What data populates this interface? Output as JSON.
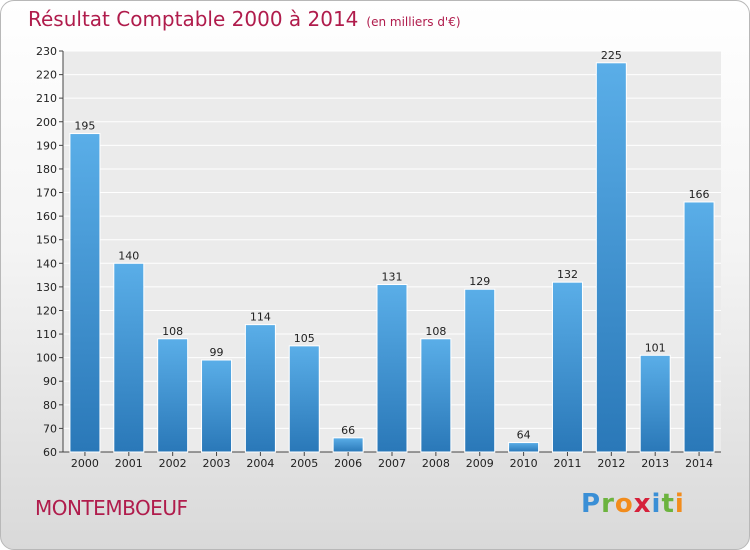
{
  "header": {
    "title": "Résultat Comptable 2000 à 2014",
    "subtitle": "(en milliers d'€)"
  },
  "footer": {
    "place": "MONTEMBOEUF",
    "logo_letters": [
      {
        "ch": "P",
        "color": "#3a8fd6"
      },
      {
        "ch": "r",
        "color": "#6cb33e"
      },
      {
        "ch": "o",
        "color": "#f28c1c"
      },
      {
        "ch": "x",
        "color": "#d6203a"
      },
      {
        "ch": "i",
        "color": "#3a8fd6"
      },
      {
        "ch": "t",
        "color": "#6cb33e"
      },
      {
        "ch": "i",
        "color": "#f28c1c"
      }
    ]
  },
  "chart_data": {
    "type": "bar",
    "title": "Résultat Comptable 2000 à 2014",
    "subtitle": "(en milliers d'€)",
    "xlabel": "",
    "ylabel": "",
    "categories": [
      "2000",
      "2001",
      "2002",
      "2003",
      "2004",
      "2005",
      "2006",
      "2007",
      "2008",
      "2009",
      "2010",
      "2011",
      "2012",
      "2013",
      "2014"
    ],
    "values": [
      195,
      140,
      108,
      99,
      114,
      105,
      66,
      131,
      108,
      129,
      64,
      132,
      225,
      101,
      166
    ],
    "ylim": [
      60,
      230
    ],
    "ytick_step": 10,
    "grid": true,
    "bar_color": "#3a8fd6"
  }
}
